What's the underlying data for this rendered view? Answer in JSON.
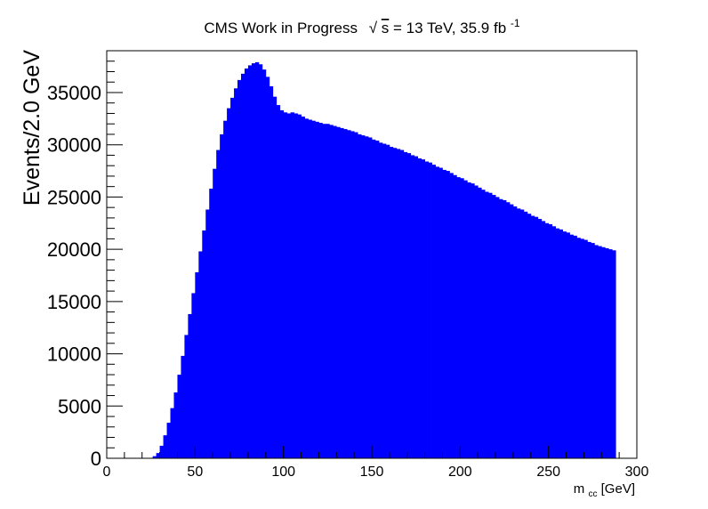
{
  "chart_data": {
    "type": "bar",
    "title": {
      "prefix": "CMS Work in Progress",
      "sqrt_symbol": "√",
      "sqrt_arg": "s",
      "energy": " = 13 TeV, 35.9 fb",
      "lumi_exponent": "-1"
    },
    "xlabel": {
      "main": "m",
      "sub": "cc",
      "unit": " [GeV]"
    },
    "ylabel": "Events/2.0 GeV",
    "xlim": [
      0,
      300
    ],
    "ylim": [
      0,
      39000
    ],
    "bin_width": 2,
    "bin_start": 0,
    "x_ticks": [
      "0",
      "50",
      "100",
      "150",
      "200",
      "250",
      "300"
    ],
    "y_ticks": [
      "0",
      "5000",
      "10000",
      "15000",
      "20000",
      "25000",
      "30000",
      "35000"
    ],
    "fill_color": "#0000ff",
    "values": [
      0,
      0,
      0,
      0,
      0,
      0,
      0,
      0,
      0,
      0,
      0,
      0,
      0,
      200,
      500,
      1200,
      2200,
      3400,
      4800,
      6300,
      8000,
      9800,
      11800,
      13800,
      15800,
      17800,
      19800,
      21800,
      23800,
      25800,
      27700,
      29500,
      31000,
      32300,
      33500,
      34500,
      35400,
      36200,
      36800,
      37300,
      37600,
      37800,
      37900,
      37700,
      37200,
      36500,
      35600,
      34600,
      33800,
      33300,
      33100,
      33000,
      33100,
      33000,
      32900,
      32700,
      32500,
      32400,
      32300,
      32200,
      32100,
      32000,
      32000,
      31900,
      31800,
      31700,
      31600,
      31500,
      31400,
      31300,
      31200,
      31000,
      30900,
      30800,
      30700,
      30500,
      30400,
      30200,
      30100,
      30000,
      29800,
      29700,
      29600,
      29500,
      29300,
      29200,
      29000,
      28900,
      28700,
      28600,
      28400,
      28300,
      28100,
      27900,
      27800,
      27600,
      27500,
      27300,
      27100,
      26900,
      26800,
      26600,
      26400,
      26300,
      26100,
      25900,
      25700,
      25500,
      25400,
      25200,
      25000,
      24800,
      24700,
      24500,
      24300,
      24100,
      23900,
      23800,
      23600,
      23400,
      23200,
      23100,
      22900,
      22700,
      22500,
      22400,
      22200,
      22000,
      21900,
      21700,
      21600,
      21400,
      21300,
      21100,
      21000,
      20900,
      20700,
      20600,
      20400,
      20300,
      20200,
      20100,
      20000,
      19900
    ]
  }
}
